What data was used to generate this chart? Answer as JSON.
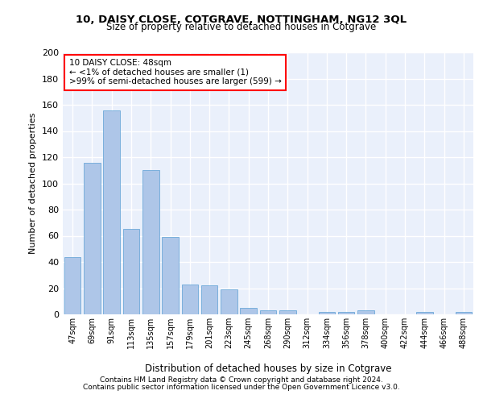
{
  "title1": "10, DAISY CLOSE, COTGRAVE, NOTTINGHAM, NG12 3QL",
  "title2": "Size of property relative to detached houses in Cotgrave",
  "xlabel": "Distribution of detached houses by size in Cotgrave",
  "ylabel": "Number of detached properties",
  "bar_labels": [
    "47sqm",
    "69sqm",
    "91sqm",
    "113sqm",
    "135sqm",
    "157sqm",
    "179sqm",
    "201sqm",
    "223sqm",
    "245sqm",
    "268sqm",
    "290sqm",
    "312sqm",
    "334sqm",
    "356sqm",
    "378sqm",
    "400sqm",
    "422sqm",
    "444sqm",
    "466sqm",
    "488sqm"
  ],
  "bar_values": [
    44,
    116,
    156,
    65,
    110,
    59,
    23,
    22,
    19,
    5,
    3,
    3,
    0,
    2,
    2,
    3,
    0,
    0,
    2,
    0,
    2
  ],
  "bar_color": "#aec6e8",
  "bar_edge_color": "#5a9fd4",
  "annotation_lines": [
    "10 DAISY CLOSE: 48sqm",
    "← <1% of detached houses are smaller (1)",
    ">99% of semi-detached houses are larger (599) →"
  ],
  "footer1": "Contains HM Land Registry data © Crown copyright and database right 2024.",
  "footer2": "Contains public sector information licensed under the Open Government Licence v3.0.",
  "ylim": [
    0,
    200
  ],
  "yticks": [
    0,
    20,
    40,
    60,
    80,
    100,
    120,
    140,
    160,
    180,
    200
  ],
  "bg_color": "#eaf0fb",
  "grid_color": "#ffffff"
}
